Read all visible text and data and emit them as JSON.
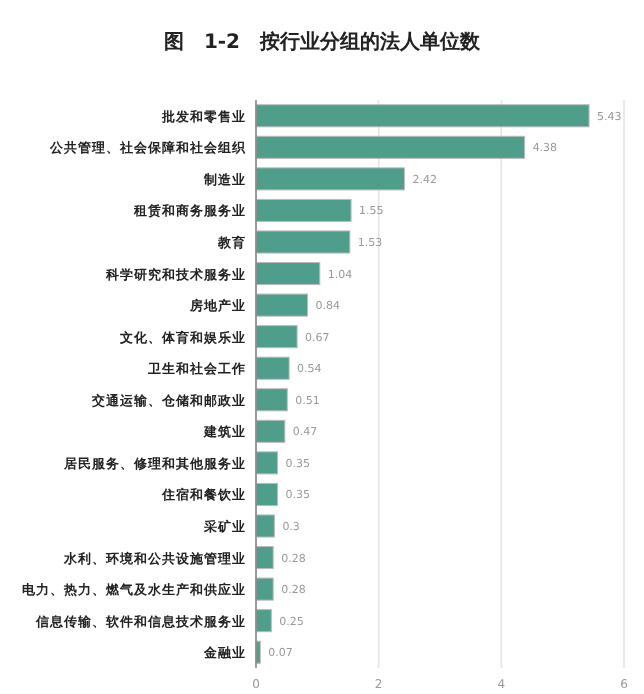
{
  "chart_data": {
    "type": "bar",
    "orientation": "horizontal",
    "title": "图　1-2　按行业分组的法人单位数",
    "categories": [
      "批发和零售业",
      "公共管理、社会保障和社会组织",
      "制造业",
      "租赁和商务服务业",
      "教育",
      "科学研究和技术服务业",
      "房地产业",
      "文化、体育和娱乐业",
      "卫生和社会工作",
      "交通运输、仓储和邮政业",
      "建筑业",
      "居民服务、修理和其他服务业",
      "住宿和餐饮业",
      "采矿业",
      "水利、环境和公共设施管理业",
      "电力、热力、燃气及水生产和供应业",
      "信息传输、软件和信息技术服务业",
      "金融业"
    ],
    "values": [
      5.43,
      4.38,
      2.42,
      1.55,
      1.53,
      1.04,
      0.84,
      0.67,
      0.54,
      0.51,
      0.47,
      0.35,
      0.35,
      0.3,
      0.28,
      0.28,
      0.25,
      0.07
    ],
    "color": "#4f9e8c",
    "xlim": [
      0,
      6
    ],
    "xticks": [
      0,
      2,
      4,
      6
    ],
    "grid": "x",
    "data_labels": true
  }
}
